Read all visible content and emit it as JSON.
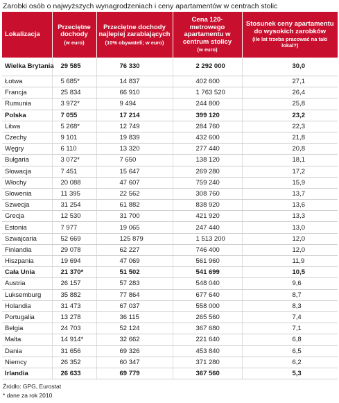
{
  "title": "Zarobki osób o najwyższych wynagrodzeniach i ceny apartamentów w centrach stolic",
  "headers": {
    "c1": "Lokalizacja",
    "c2": "Przeciętne dochody",
    "c2_sub": "(w euro)",
    "c3": "Przeciętne dochody najlepiej zarabiających",
    "c3_sub": "(10% obywateli; w euro)",
    "c4": "Cena 120-metrowego apartamentu w centrum stolicy",
    "c4_sub": "(w euro)",
    "c5": "Stosunek ceny apartamentu do wysokich zarobków",
    "c5_sub": "(ile lat trzeba pracować na taki lokal?)"
  },
  "rows": [
    {
      "country": "Wielka Brytania",
      "avg": "29 585",
      "top": "76 330",
      "price": "2 292 000",
      "ratio": "30,0",
      "bold": true
    },
    {
      "country": "Łotwa",
      "avg": "5 685*",
      "top": "14 837",
      "price": "402 600",
      "ratio": "27,1"
    },
    {
      "country": "Francja",
      "avg": "25 834",
      "top": "66 910",
      "price": "1 763 520",
      "ratio": "26,4"
    },
    {
      "country": "Rumunia",
      "avg": "3 972*",
      "top": "9 494",
      "price": "244 800",
      "ratio": "25,8"
    },
    {
      "country": "Polska",
      "avg": "7 055",
      "top": "17 214",
      "price": "399 120",
      "ratio": "23,2",
      "bold": true
    },
    {
      "country": "Litwa",
      "avg": "5 268*",
      "top": "12 749",
      "price": "284 760",
      "ratio": "22,3"
    },
    {
      "country": "Czechy",
      "avg": "9 101",
      "top": "19 839",
      "price": "432 600",
      "ratio": "21,8"
    },
    {
      "country": "Węgry",
      "avg": "6 110",
      "top": "13 320",
      "price": "277 440",
      "ratio": "20,8"
    },
    {
      "country": "Bułgaria",
      "avg": "3 072*",
      "top": "7 650",
      "price": "138 120",
      "ratio": "18,1"
    },
    {
      "country": "Słowacja",
      "avg": "7 451",
      "top": "15 647",
      "price": "269 280",
      "ratio": "17,2"
    },
    {
      "country": "Włochy",
      "avg": "20 088",
      "top": "47 607",
      "price": "759 240",
      "ratio": "15,9"
    },
    {
      "country": "Słowenia",
      "avg": "11 395",
      "top": "22 562",
      "price": "308 760",
      "ratio": "13,7"
    },
    {
      "country": "Szwecja",
      "avg": "31 254",
      "top": "61 882",
      "price": "838 920",
      "ratio": "13,6"
    },
    {
      "country": "Grecja",
      "avg": "12 530",
      "top": "31 700",
      "price": "421 920",
      "ratio": "13,3"
    },
    {
      "country": "Estonia",
      "avg": "7 977",
      "top": "19 065",
      "price": "247 440",
      "ratio": "13,0"
    },
    {
      "country": "Szwajcaria",
      "avg": "52 669",
      "top": "125 879",
      "price": "1 513 200",
      "ratio": "12,0"
    },
    {
      "country": "Finlandia",
      "avg": "29 078",
      "top": "62 227",
      "price": "746 400",
      "ratio": "12,0"
    },
    {
      "country": "Hiszpania",
      "avg": "19 694",
      "top": "47 069",
      "price": "561 960",
      "ratio": "11,9"
    },
    {
      "country": "Cała Unia",
      "avg": "21 370*",
      "top": "51 502",
      "price": "541 699",
      "ratio": "10,5",
      "bold": true
    },
    {
      "country": "Austria",
      "avg": "26 157",
      "top": "57 283",
      "price": "548 040",
      "ratio": "9,6"
    },
    {
      "country": "Luksemburg",
      "avg": "35 882",
      "top": "77 864",
      "price": "677 640",
      "ratio": "8,7"
    },
    {
      "country": "Holandia",
      "avg": "31 473",
      "top": "67 037",
      "price": "558 000",
      "ratio": "8,3"
    },
    {
      "country": "Portugalia",
      "avg": "13 278",
      "top": "36 115",
      "price": "265 560",
      "ratio": "7,4"
    },
    {
      "country": "Belgia",
      "avg": "24 703",
      "top": "52 124",
      "price": "367 680",
      "ratio": "7,1"
    },
    {
      "country": "Malta",
      "avg": "14 914*",
      "top": "32 662",
      "price": "221 640",
      "ratio": "6,8"
    },
    {
      "country": "Dania",
      "avg": "31 656",
      "top": "69 326",
      "price": "453 840",
      "ratio": "6,5"
    },
    {
      "country": "Niemcy",
      "avg": "26 352",
      "top": "60 347",
      "price": "371 280",
      "ratio": "6,2"
    },
    {
      "country": "Irlandia",
      "avg": "26 633",
      "top": "69 779",
      "price": "367 560",
      "ratio": "5,3",
      "bold": true
    }
  ],
  "notes": {
    "source": "Źródło: GPG, Eurostat",
    "footnote": "* dane za rok 2010"
  }
}
